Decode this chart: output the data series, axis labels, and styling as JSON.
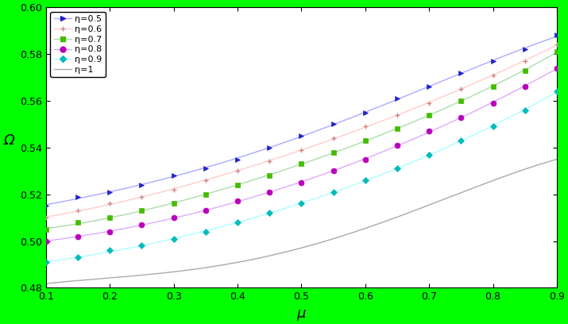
{
  "background_color": "#00ff00",
  "xlim": [
    0.1,
    0.9
  ],
  "ylim": [
    0.48,
    0.6
  ],
  "xlabel": "μ",
  "ylabel": "Ω",
  "xticks": [
    0.1,
    0.2,
    0.3,
    0.4,
    0.5,
    0.6,
    0.7,
    0.8,
    0.9
  ],
  "yticks": [
    0.48,
    0.5,
    0.52,
    0.54,
    0.56,
    0.58,
    0.6
  ],
  "series": [
    {
      "label": "η=0.5",
      "line_color": "#aaaaff",
      "marker": ">",
      "marker_color": "#2222cc",
      "markersize": 4
    },
    {
      "label": "η=0.6",
      "line_color": "#ffcccc",
      "marker": "+",
      "marker_color": "#cc8888",
      "markersize": 5
    },
    {
      "label": "η=0.7",
      "line_color": "#aaddaa",
      "marker": "s",
      "marker_color": "#44bb00",
      "markersize": 4
    },
    {
      "label": "η=0.8",
      "line_color": "#ddaaff",
      "marker": "o",
      "marker_color": "#bb00bb",
      "markersize": 5
    },
    {
      "label": "η=0.9",
      "line_color": "#aaffff",
      "marker": "D",
      "marker_color": "#00bbbb",
      "markersize": 4
    },
    {
      "label": "η=1",
      "line_color": "#aaaaaa",
      "marker": "None",
      "marker_color": "#aaaaaa",
      "markersize": 0
    }
  ],
  "mu_values": [
    0.1,
    0.15,
    0.2,
    0.25,
    0.3,
    0.35,
    0.4,
    0.45,
    0.5,
    0.55,
    0.6,
    0.65,
    0.7,
    0.75,
    0.8,
    0.85,
    0.9
  ],
  "omega_eta05": [
    0.515,
    0.519,
    0.521,
    0.524,
    0.528,
    0.531,
    0.535,
    0.54,
    0.545,
    0.55,
    0.555,
    0.561,
    0.566,
    0.572,
    0.577,
    0.582,
    0.588
  ],
  "omega_eta06": [
    0.51,
    0.513,
    0.516,
    0.519,
    0.522,
    0.526,
    0.53,
    0.534,
    0.539,
    0.544,
    0.549,
    0.554,
    0.559,
    0.565,
    0.571,
    0.577,
    0.584
  ],
  "omega_eta07": [
    0.505,
    0.508,
    0.51,
    0.513,
    0.516,
    0.52,
    0.524,
    0.528,
    0.533,
    0.538,
    0.543,
    0.548,
    0.554,
    0.56,
    0.566,
    0.573,
    0.581
  ],
  "omega_eta08": [
    0.5,
    0.502,
    0.504,
    0.507,
    0.51,
    0.513,
    0.517,
    0.521,
    0.525,
    0.53,
    0.535,
    0.541,
    0.547,
    0.553,
    0.559,
    0.566,
    0.574
  ],
  "omega_eta09": [
    0.491,
    0.493,
    0.496,
    0.498,
    0.501,
    0.504,
    0.508,
    0.512,
    0.516,
    0.521,
    0.526,
    0.531,
    0.537,
    0.543,
    0.549,
    0.556,
    0.564
  ],
  "omega_eta1": [
    0.482,
    0.483,
    0.484,
    0.485,
    0.487,
    0.489,
    0.491,
    0.494,
    0.497,
    0.501,
    0.505,
    0.51,
    0.515,
    0.521,
    0.527,
    0.53,
    0.535
  ]
}
